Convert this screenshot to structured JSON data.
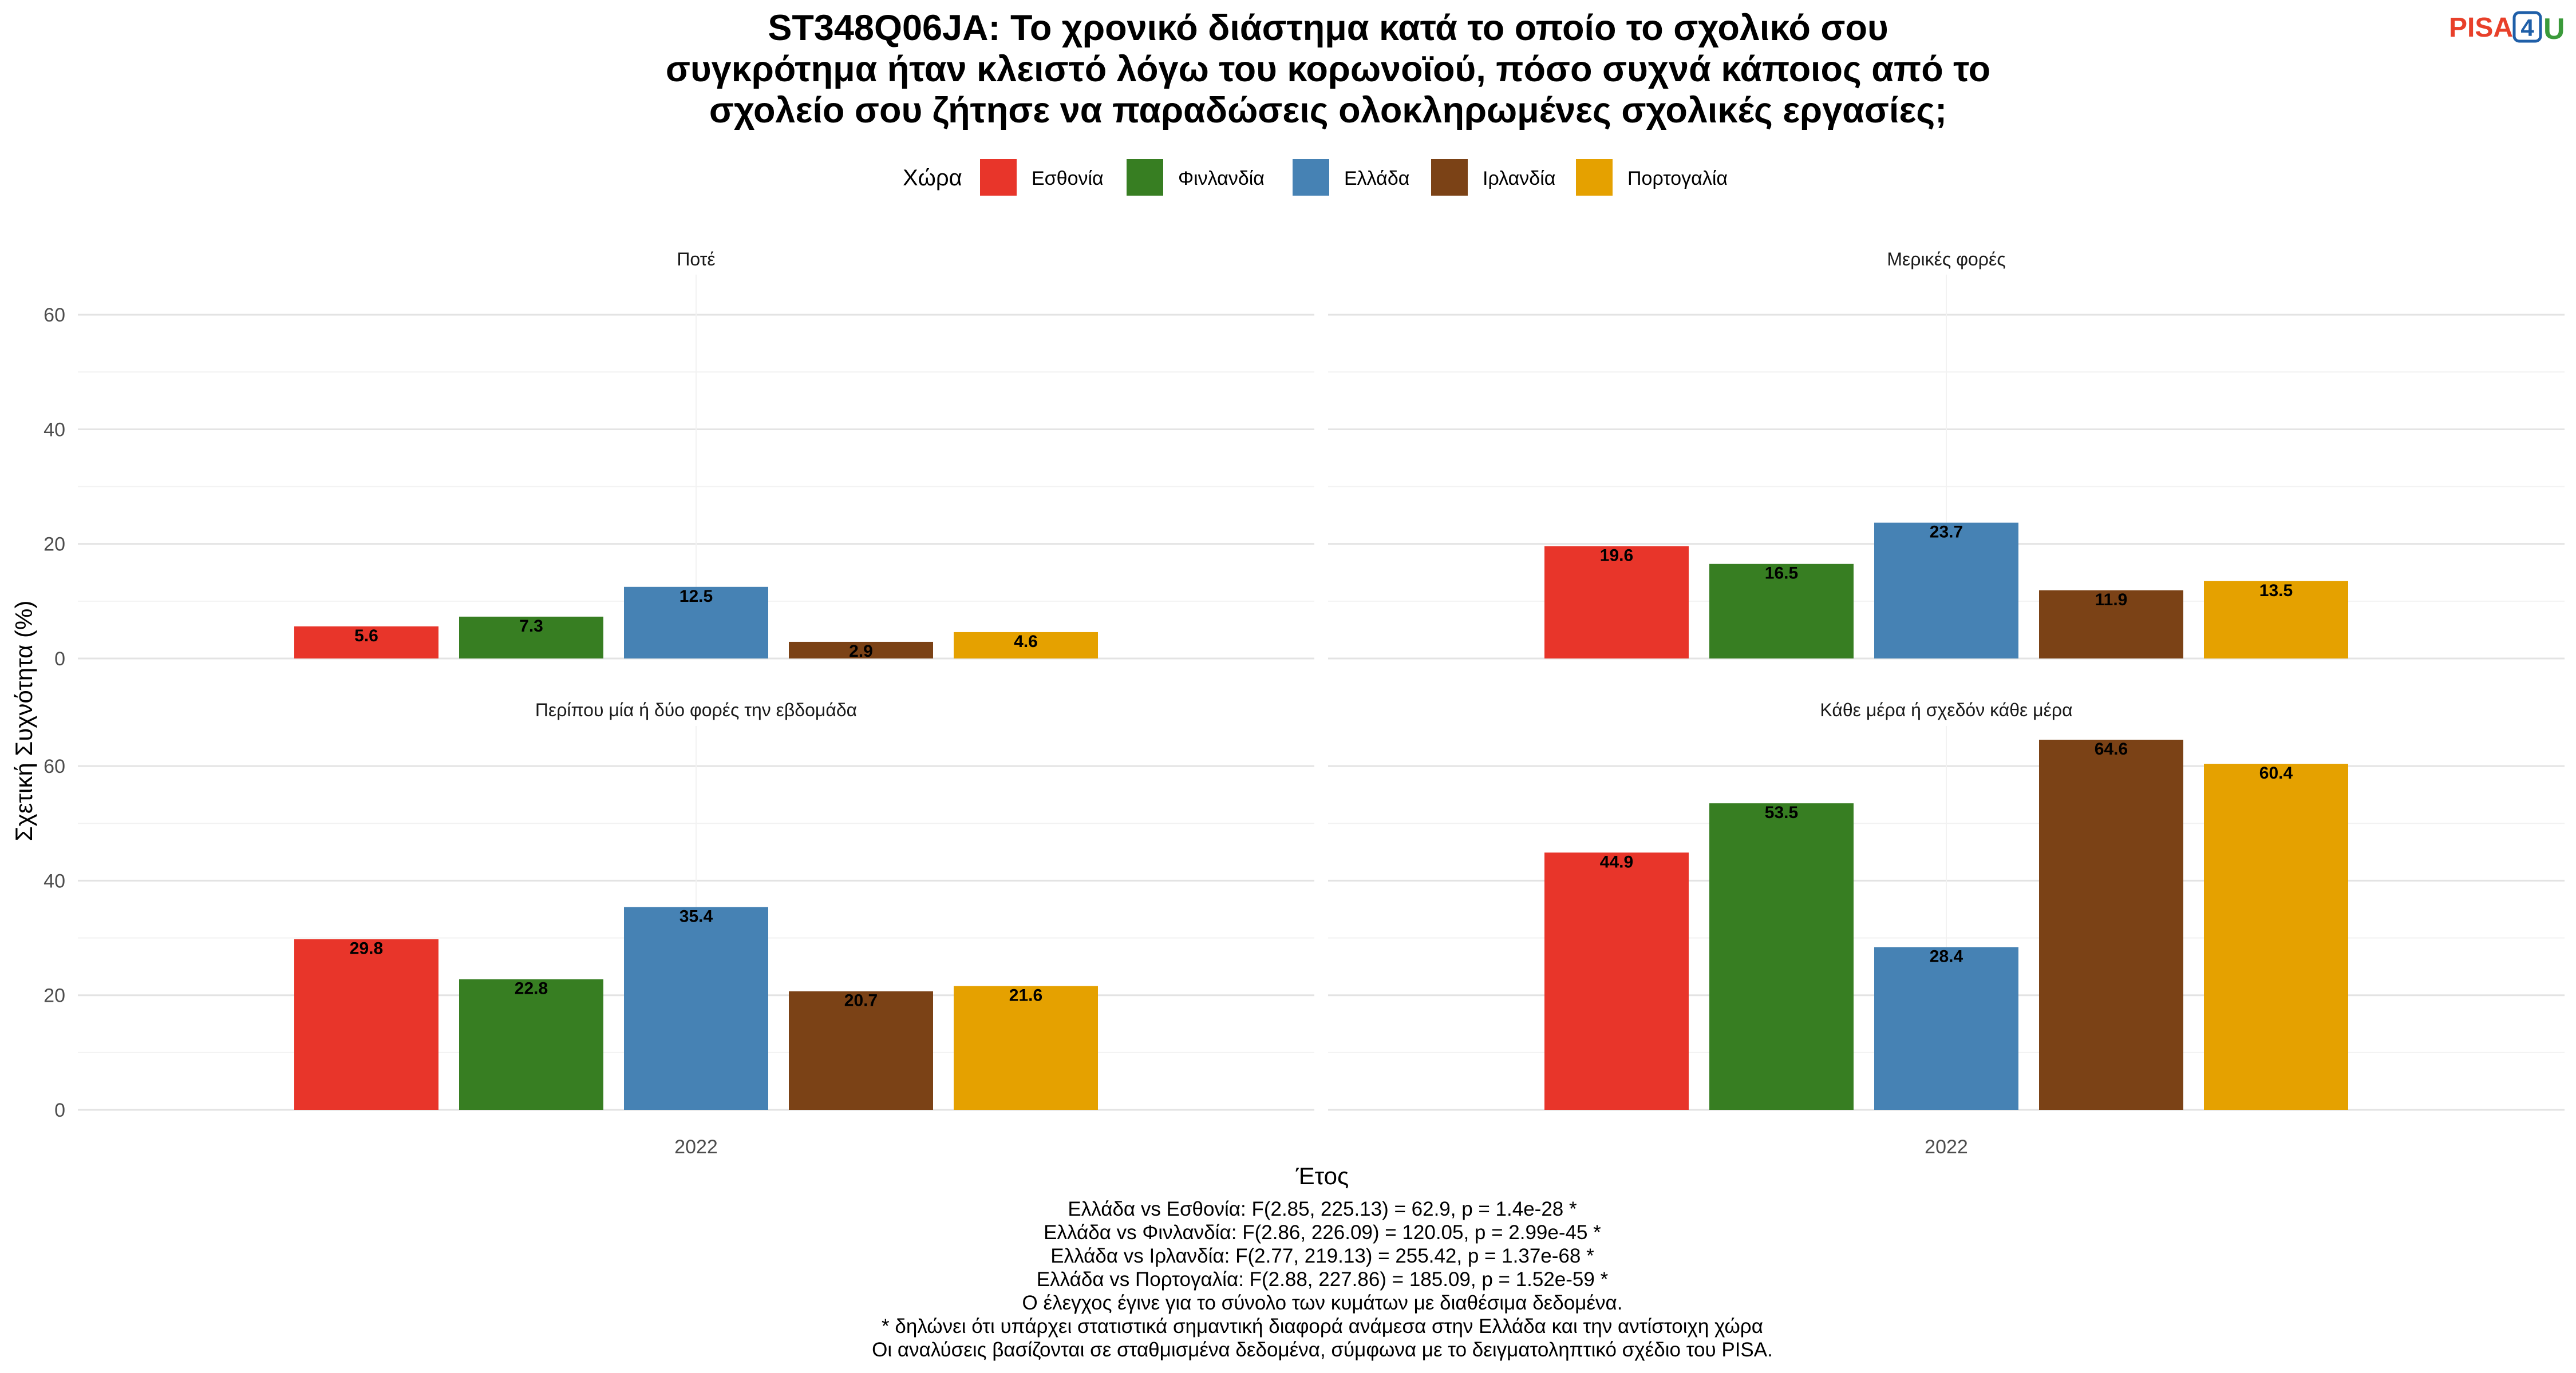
{
  "title_lines": [
    "ST348Q06JA: Το χρονικό διάστημα κατά το οποίο το σχολικό σου",
    "συγκρότημα ήταν κλειστό λόγω του κορωνοϊού, πόσο συχνά κάποιος από το",
    "σχολείο σου ζήτησε να παραδώσεις ολοκληρωμένες σχολικές εργασίες;"
  ],
  "logo": {
    "pisa": "PISA",
    "four": "4",
    "u": "U"
  },
  "legend": {
    "title": "Χώρα"
  },
  "chart_data": {
    "type": "bar",
    "xlabel": "Έτος",
    "ylabel": "Σχετική Συχνότητα (%)",
    "ylim": [
      0,
      65
    ],
    "yticks": [
      0,
      20,
      40,
      60
    ],
    "x_category": "2022",
    "grid": true,
    "legend_position": "top",
    "series": [
      {
        "name": "Εσθονία",
        "color": "#e8352a"
      },
      {
        "name": "Φινλανδία",
        "color": "#377e22"
      },
      {
        "name": "Ελλάδα",
        "color": "#4682b4"
      },
      {
        "name": "Ιρλανδία",
        "color": "#7b4216"
      },
      {
        "name": "Πορτογαλία",
        "color": "#e5a100"
      }
    ],
    "panels": [
      {
        "label": "Ποτέ",
        "values": [
          5.6,
          7.3,
          12.5,
          2.9,
          4.6
        ]
      },
      {
        "label": "Μερικές φορές",
        "values": [
          19.6,
          16.5,
          23.7,
          11.9,
          13.5
        ]
      },
      {
        "label": "Περίπου μία ή δύο φορές την εβδομάδα",
        "values": [
          29.8,
          22.8,
          35.4,
          20.7,
          21.6
        ]
      },
      {
        "label": "Κάθε μέρα ή σχεδόν κάθε μέρα",
        "values": [
          44.9,
          53.5,
          28.4,
          64.6,
          60.4
        ]
      }
    ]
  },
  "footer_lines": [
    "Ελλάδα vs Εσθονία: F(2.85, 225.13) = 62.9, p = 1.4e-28 *",
    "Ελλάδα vs Φινλανδία: F(2.86, 226.09) = 120.05, p = 2.99e-45 *",
    "Ελλάδα vs Ιρλανδία: F(2.77, 219.13) = 255.42, p = 1.37e-68 *",
    "Ελλάδα vs Πορτογαλία: F(2.88, 227.86) = 185.09, p = 1.52e-59 *",
    "Ο έλεγχος έγινε για το σύνολο των κυμάτων με διαθέσιμα δεδομένα.",
    "* δηλώνει ότι υπάρχει στατιστικά σημαντική διαφορά ανάμεσα στην Ελλάδα και την αντίστοιχη χώρα",
    "Οι αναλύσεις βασίζονται σε σταθμισμένα δεδομένα, σύμφωνα με το δειγματοληπτικό σχέδιο του PISA."
  ]
}
